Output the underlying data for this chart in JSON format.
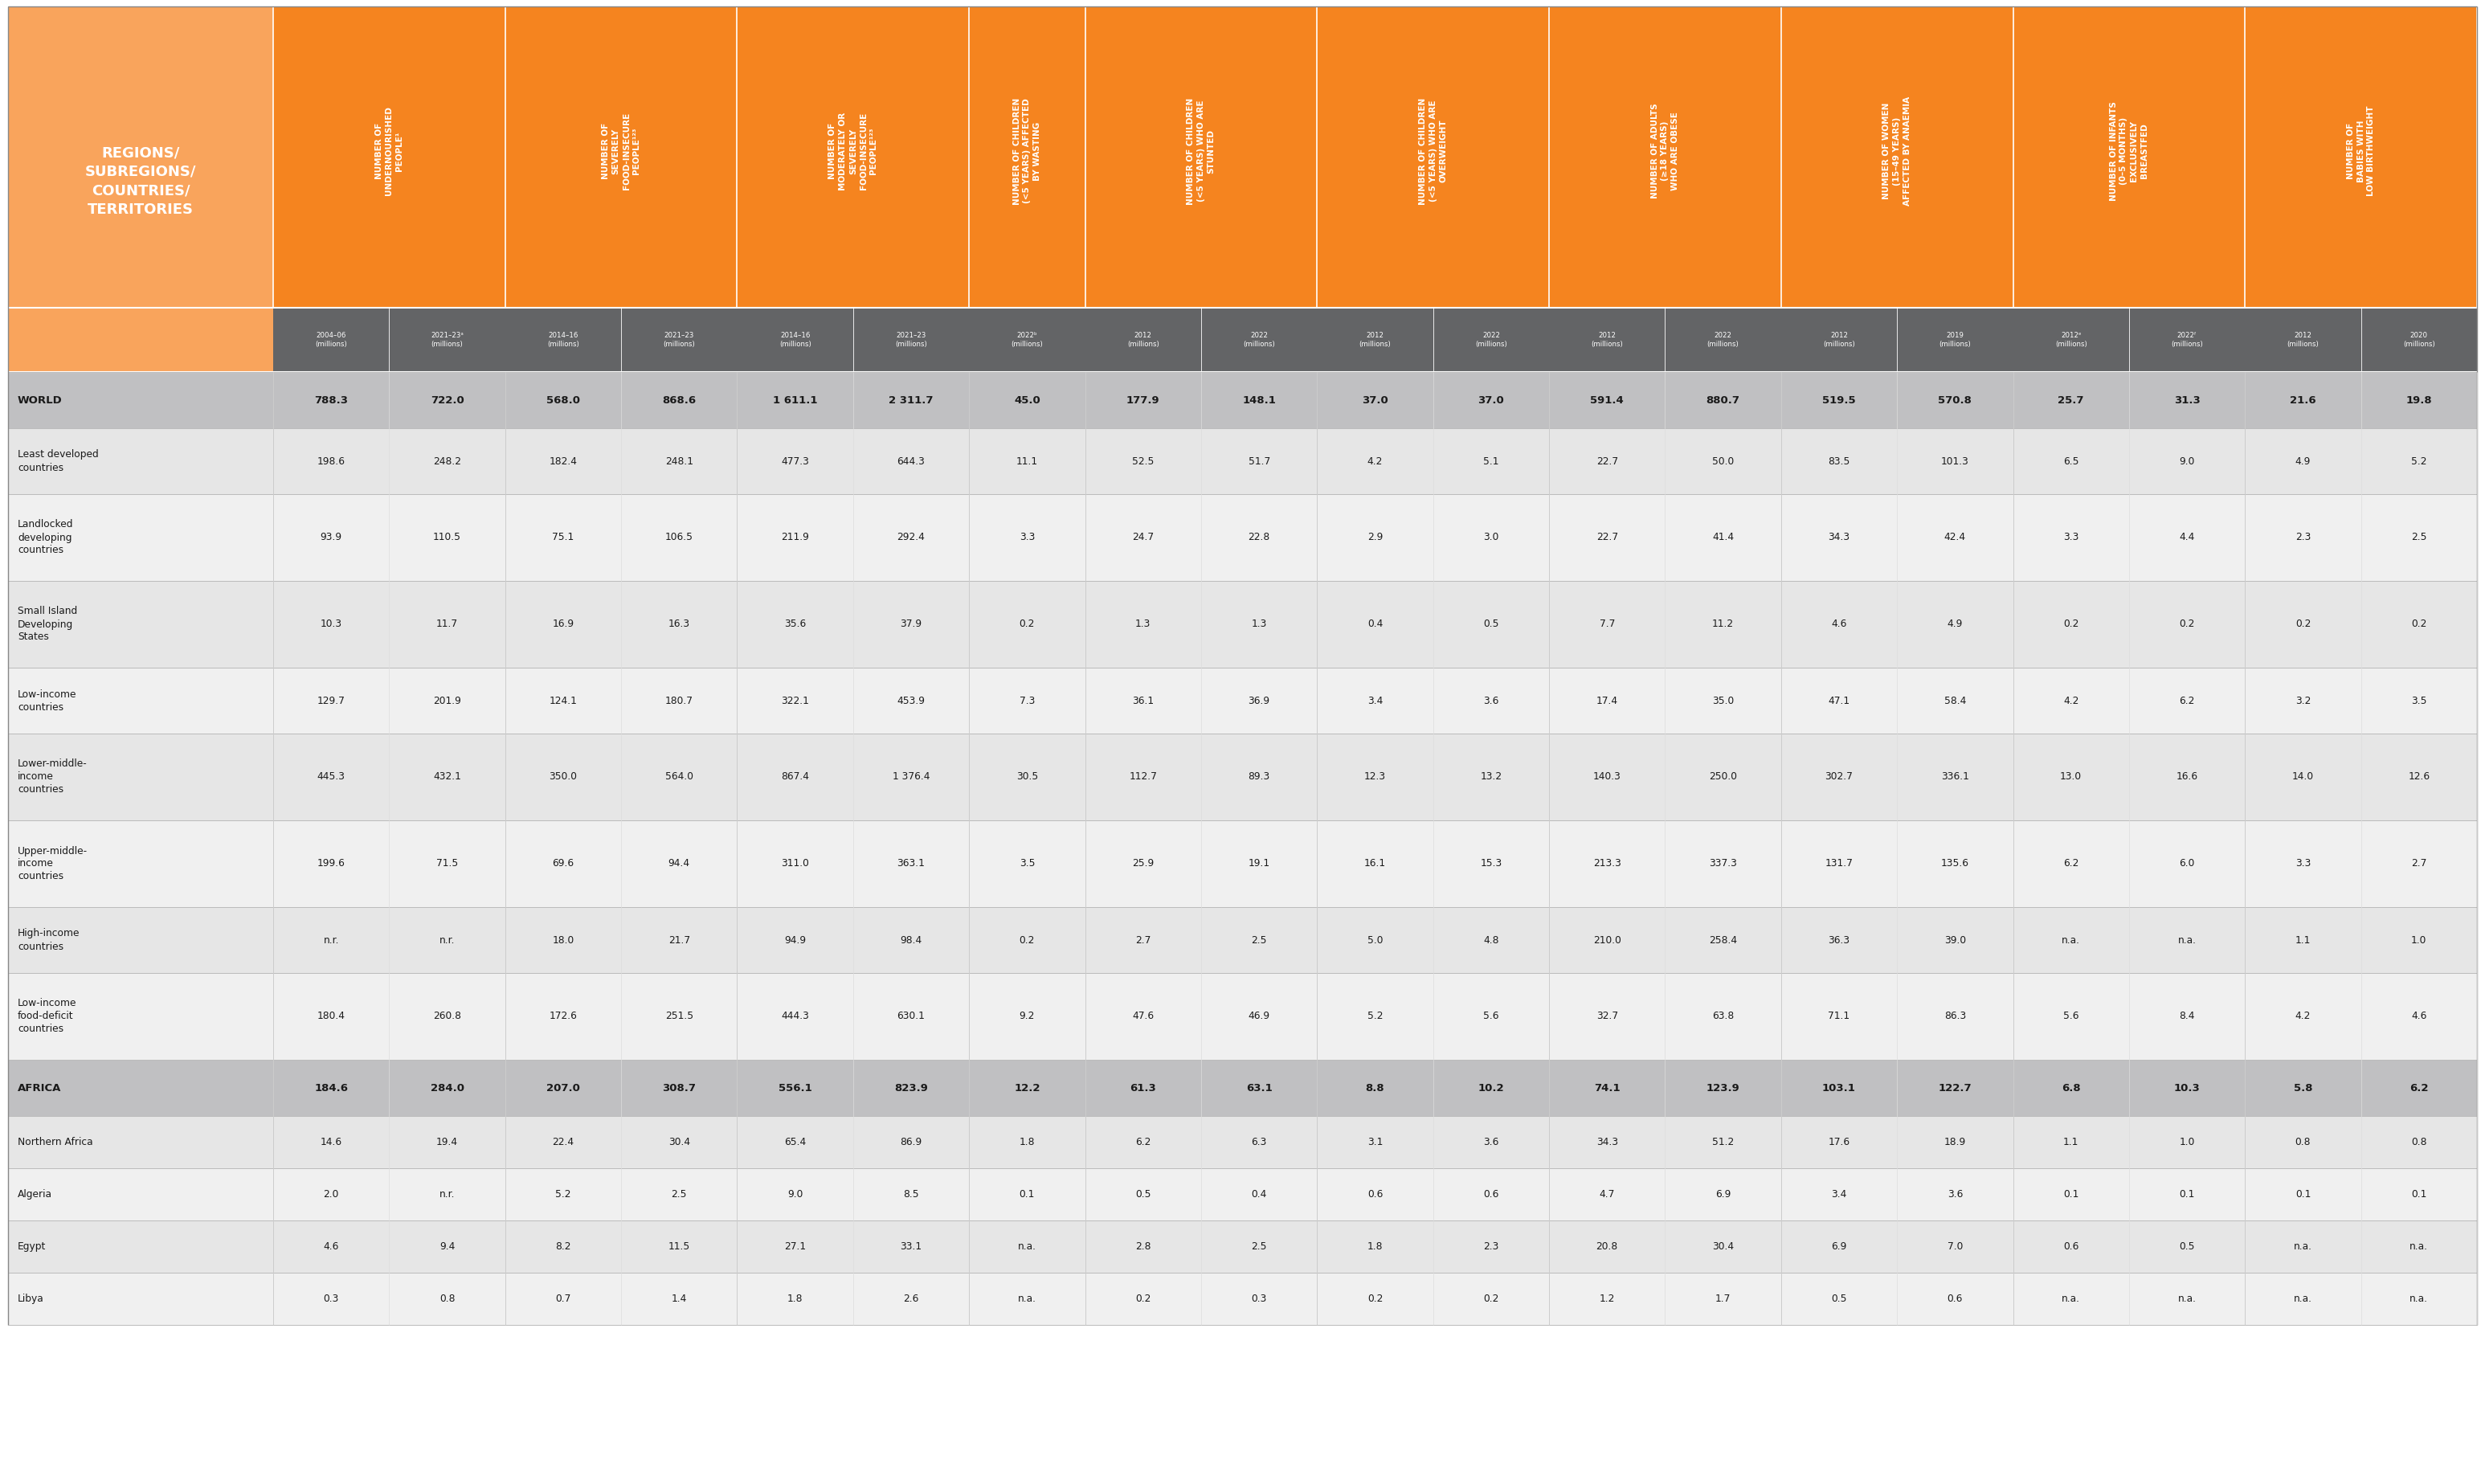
{
  "header_bg": "#F5841F",
  "col1_header_bg": "#F9A45C",
  "subheader_bg": "#636466",
  "world_bg": "#C0C0C2",
  "africa_bg": "#C0C0C2",
  "row_bg_light": "#E6E6E6",
  "row_bg_white": "#F0F0F0",
  "text_dark": "#1A1A1A",
  "text_white": "#FFFFFF",
  "col1_header": "REGIONS/\nSUBREGIONS/\nCOUNTRIES/\nTERRITORIES",
  "col_headers": [
    "NUMBER OF\nUNDERNOURISHED\nPEOPLE¹",
    "NUMBER OF\nSEVERELY\nFOOD-INSECURE\nPEOPLE¹²³",
    "NUMBER OF\nMODERATELY OR\nSEVERELY\nFOOD-INSECURE\nPEOPLE¹²³",
    "NUMBER OF CHILDREN\n(<5 YEARS) AFFECTED\nBY WASTING",
    "NUMBER OF CHILDREN\n(<5 YEARS) WHO ARE\nSTUNTED",
    "NUMBER OF CHILDREN\n(<5 YEARS) WHO ARE\nOVERWEIGHT",
    "NUMBER OF ADULTS\n(≥18 YEARS)\nWHO ARE OBESE",
    "NUMBER OF WOMEN\n(15–49 YEARS)\nAFFECTED BY ANAEMIA",
    "NUMBER OF INFANTS\n(0–5 MONTHS)\nEXCLUSIVELY\nBREASTFED",
    "NUMBER OF\nBABIES WITH\nLOW BIRTHWEIGHT"
  ],
  "subheaders": [
    [
      "2004–06\n(millions)",
      "2021–23ᵃ\n(millions)"
    ],
    [
      "2014–16\n(millions)",
      "2021–23\n(millions)"
    ],
    [
      "2014–16\n(millions)",
      "2021–23\n(millions)"
    ],
    [
      "2022ᵇ\n(millions)"
    ],
    [
      "2012\n(millions)",
      "2022\n(millions)"
    ],
    [
      "2012\n(millions)",
      "2022\n(millions)"
    ],
    [
      "2012\n(millions)",
      "2022\n(millions)"
    ],
    [
      "2012\n(millions)",
      "2019\n(millions)"
    ],
    [
      "2012ᵉ\n(millions)",
      "2022ᶠ\n(millions)"
    ],
    [
      "2012\n(millions)",
      "2020\n(millions)"
    ]
  ],
  "subcol_counts": [
    2,
    2,
    2,
    1,
    2,
    2,
    2,
    2,
    2,
    2
  ],
  "rows": [
    {
      "name": "WORLD",
      "values": [
        "788.3",
        "722.0",
        "568.0",
        "868.6",
        "1 611.1",
        "2 311.7",
        "45.0",
        "177.9",
        "148.1",
        "37.0",
        "37.0",
        "591.4",
        "880.7",
        "519.5",
        "570.8",
        "25.7",
        "31.3",
        "21.6",
        "19.8"
      ],
      "style": "world"
    },
    {
      "name": "Least developed\ncountries",
      "values": [
        "198.6",
        "248.2",
        "182.4",
        "248.1",
        "477.3",
        "644.3",
        "11.1",
        "52.5",
        "51.7",
        "4.2",
        "5.1",
        "22.7",
        "50.0",
        "83.5",
        "101.3",
        "6.5",
        "9.0",
        "4.9",
        "5.2"
      ],
      "style": "light"
    },
    {
      "name": "Landlocked\ndeveloping\ncountries",
      "values": [
        "93.9",
        "110.5",
        "75.1",
        "106.5",
        "211.9",
        "292.4",
        "3.3",
        "24.7",
        "22.8",
        "2.9",
        "3.0",
        "22.7",
        "41.4",
        "34.3",
        "42.4",
        "3.3",
        "4.4",
        "2.3",
        "2.5"
      ],
      "style": "white"
    },
    {
      "name": "Small Island\nDeveloping\nStates",
      "values": [
        "10.3",
        "11.7",
        "16.9",
        "16.3",
        "35.6",
        "37.9",
        "0.2",
        "1.3",
        "1.3",
        "0.4",
        "0.5",
        "7.7",
        "11.2",
        "4.6",
        "4.9",
        "0.2",
        "0.2",
        "0.2",
        "0.2"
      ],
      "style": "light"
    },
    {
      "name": "Low-income\ncountries",
      "values": [
        "129.7",
        "201.9",
        "124.1",
        "180.7",
        "322.1",
        "453.9",
        "7.3",
        "36.1",
        "36.9",
        "3.4",
        "3.6",
        "17.4",
        "35.0",
        "47.1",
        "58.4",
        "4.2",
        "6.2",
        "3.2",
        "3.5"
      ],
      "style": "white"
    },
    {
      "name": "Lower-middle-\nincome\ncountries",
      "values": [
        "445.3",
        "432.1",
        "350.0",
        "564.0",
        "867.4",
        "1 376.4",
        "30.5",
        "112.7",
        "89.3",
        "12.3",
        "13.2",
        "140.3",
        "250.0",
        "302.7",
        "336.1",
        "13.0",
        "16.6",
        "14.0",
        "12.6"
      ],
      "style": "light"
    },
    {
      "name": "Upper-middle-\nincome\ncountries",
      "values": [
        "199.6",
        "71.5",
        "69.6",
        "94.4",
        "311.0",
        "363.1",
        "3.5",
        "25.9",
        "19.1",
        "16.1",
        "15.3",
        "213.3",
        "337.3",
        "131.7",
        "135.6",
        "6.2",
        "6.0",
        "3.3",
        "2.7"
      ],
      "style": "white"
    },
    {
      "name": "High-income\ncountries",
      "values": [
        "n.r.",
        "n.r.",
        "18.0",
        "21.7",
        "94.9",
        "98.4",
        "0.2",
        "2.7",
        "2.5",
        "5.0",
        "4.8",
        "210.0",
        "258.4",
        "36.3",
        "39.0",
        "n.a.",
        "n.a.",
        "1.1",
        "1.0"
      ],
      "style": "light"
    },
    {
      "name": "Low-income\nfood-deficit\ncountries",
      "values": [
        "180.4",
        "260.8",
        "172.6",
        "251.5",
        "444.3",
        "630.1",
        "9.2",
        "47.6",
        "46.9",
        "5.2",
        "5.6",
        "32.7",
        "63.8",
        "71.1",
        "86.3",
        "5.6",
        "8.4",
        "4.2",
        "4.6"
      ],
      "style": "white"
    },
    {
      "name": "AFRICA",
      "values": [
        "184.6",
        "284.0",
        "207.0",
        "308.7",
        "556.1",
        "823.9",
        "12.2",
        "61.3",
        "63.1",
        "8.8",
        "10.2",
        "74.1",
        "123.9",
        "103.1",
        "122.7",
        "6.8",
        "10.3",
        "5.8",
        "6.2"
      ],
      "style": "africa"
    },
    {
      "name": "Northern Africa",
      "values": [
        "14.6",
        "19.4",
        "22.4",
        "30.4",
        "65.4",
        "86.9",
        "1.8",
        "6.2",
        "6.3",
        "3.1",
        "3.6",
        "34.3",
        "51.2",
        "17.6",
        "18.9",
        "1.1",
        "1.0",
        "0.8",
        "0.8"
      ],
      "style": "light"
    },
    {
      "name": "Algeria",
      "values": [
        "2.0",
        "n.r.",
        "5.2",
        "2.5",
        "9.0",
        "8.5",
        "0.1",
        "0.5",
        "0.4",
        "0.6",
        "0.6",
        "4.7",
        "6.9",
        "3.4",
        "3.6",
        "0.1",
        "0.1",
        "0.1",
        "0.1"
      ],
      "style": "white"
    },
    {
      "name": "Egypt",
      "values": [
        "4.6",
        "9.4",
        "8.2",
        "11.5",
        "27.1",
        "33.1",
        "n.a.",
        "2.8",
        "2.5",
        "1.8",
        "2.3",
        "20.8",
        "30.4",
        "6.9",
        "7.0",
        "0.6",
        "0.5",
        "n.a.",
        "n.a."
      ],
      "style": "light"
    },
    {
      "name": "Libya",
      "values": [
        "0.3",
        "0.8",
        "0.7",
        "1.4",
        "1.8",
        "2.6",
        "n.a.",
        "0.2",
        "0.3",
        "0.2",
        "0.2",
        "1.2",
        "1.7",
        "0.5",
        "0.6",
        "n.a.",
        "n.a.",
        "n.a.",
        "n.a."
      ],
      "style": "white"
    }
  ]
}
